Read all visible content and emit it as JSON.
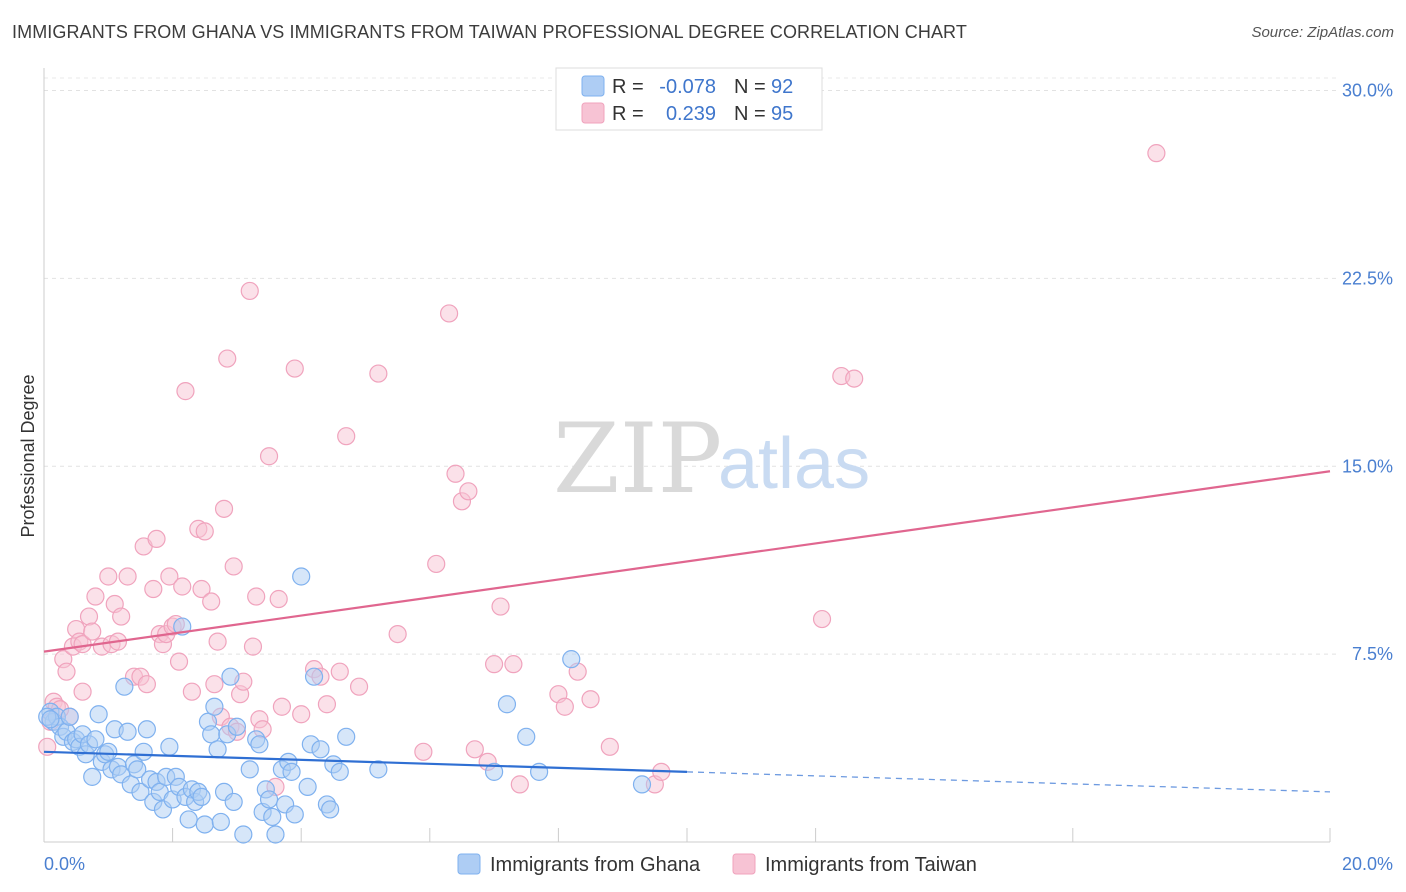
{
  "title": "IMMIGRANTS FROM GHANA VS IMMIGRANTS FROM TAIWAN PROFESSIONAL DEGREE CORRELATION CHART",
  "source": "Source: ZipAtlas.com",
  "watermark": {
    "zip": "ZIP",
    "atlas": "atlas"
  },
  "chart_data": {
    "type": "scatter",
    "title": "IMMIGRANTS FROM GHANA VS IMMIGRANTS FROM TAIWAN PROFESSIONAL DEGREE CORRELATION CHART",
    "xlabel": "",
    "ylabel": "Professional Degree",
    "xlim": [
      0,
      20
    ],
    "ylim": [
      0,
      30.5
    ],
    "x_tick_labels": {
      "0": "0.0%",
      "20": "20.0%"
    },
    "y_ticks": [
      {
        "value": 7.5,
        "label": "7.5%"
      },
      {
        "value": 15,
        "label": "15.0%"
      },
      {
        "value": 22.5,
        "label": "22.5%"
      },
      {
        "value": 30,
        "label": "30.0%"
      }
    ],
    "grid": true,
    "legend_top": {
      "entries": [
        {
          "r_label": "R =",
          "r_value": "-0.078",
          "n_label": "N =",
          "n_value": "92"
        },
        {
          "r_label": "R =",
          "r_value": "0.239",
          "n_label": "N =",
          "n_value": "95"
        }
      ]
    },
    "series": [
      {
        "name": "Immigrants from Ghana",
        "color": "#7fb1ef",
        "fill": "#aecdf4",
        "line_color": "#2f6fd3",
        "trend": {
          "x0": 0,
          "y0": 3.6,
          "x1": 10,
          "y1": 2.8,
          "dash_x1": 20,
          "dash_y1": 2.0
        },
        "points": [
          [
            0.1,
            5.2
          ],
          [
            0.15,
            4.8
          ],
          [
            0.2,
            5.0
          ],
          [
            0.25,
            4.6
          ],
          [
            0.3,
            4.2
          ],
          [
            0.35,
            4.4
          ],
          [
            0.4,
            5.0
          ],
          [
            0.45,
            4.0
          ],
          [
            0.5,
            4.1
          ],
          [
            0.55,
            3.8
          ],
          [
            0.6,
            4.3
          ],
          [
            0.65,
            3.5
          ],
          [
            0.7,
            3.9
          ],
          [
            0.75,
            2.6
          ],
          [
            0.8,
            4.1
          ],
          [
            0.85,
            5.1
          ],
          [
            0.9,
            3.2
          ],
          [
            0.95,
            3.5
          ],
          [
            1.0,
            3.6
          ],
          [
            1.05,
            2.9
          ],
          [
            1.1,
            4.5
          ],
          [
            1.15,
            3.0
          ],
          [
            1.2,
            2.7
          ],
          [
            1.25,
            6.2
          ],
          [
            1.3,
            4.4
          ],
          [
            1.35,
            2.3
          ],
          [
            1.4,
            3.1
          ],
          [
            1.45,
            2.9
          ],
          [
            1.5,
            2.0
          ],
          [
            1.55,
            3.6
          ],
          [
            1.6,
            4.5
          ],
          [
            1.65,
            2.5
          ],
          [
            1.7,
            1.6
          ],
          [
            1.75,
            2.4
          ],
          [
            1.8,
            2.0
          ],
          [
            1.85,
            1.3
          ],
          [
            1.9,
            2.6
          ],
          [
            1.95,
            3.8
          ],
          [
            2.0,
            1.7
          ],
          [
            2.05,
            2.6
          ],
          [
            2.1,
            2.2
          ],
          [
            2.15,
            8.6
          ],
          [
            2.2,
            1.8
          ],
          [
            2.25,
            0.9
          ],
          [
            2.3,
            2.1
          ],
          [
            2.35,
            1.6
          ],
          [
            2.4,
            2.0
          ],
          [
            2.45,
            1.8
          ],
          [
            2.5,
            0.7
          ],
          [
            2.55,
            4.8
          ],
          [
            2.6,
            4.3
          ],
          [
            2.65,
            5.4
          ],
          [
            2.7,
            3.7
          ],
          [
            2.75,
            0.8
          ],
          [
            2.8,
            2.0
          ],
          [
            2.85,
            4.3
          ],
          [
            2.9,
            6.6
          ],
          [
            2.95,
            1.6
          ],
          [
            3.0,
            4.6
          ],
          [
            3.1,
            0.3
          ],
          [
            3.2,
            2.9
          ],
          [
            3.3,
            4.1
          ],
          [
            3.35,
            3.9
          ],
          [
            3.4,
            1.2
          ],
          [
            3.45,
            2.1
          ],
          [
            3.5,
            1.7
          ],
          [
            3.55,
            1.0
          ],
          [
            3.6,
            0.3
          ],
          [
            3.7,
            2.9
          ],
          [
            3.75,
            1.5
          ],
          [
            3.8,
            3.2
          ],
          [
            3.85,
            2.8
          ],
          [
            3.9,
            1.1
          ],
          [
            4.0,
            10.6
          ],
          [
            4.1,
            2.2
          ],
          [
            4.15,
            3.9
          ],
          [
            4.2,
            6.6
          ],
          [
            4.3,
            3.7
          ],
          [
            4.4,
            1.5
          ],
          [
            4.45,
            1.3
          ],
          [
            4.5,
            3.1
          ],
          [
            4.6,
            2.8
          ],
          [
            4.7,
            4.2
          ],
          [
            5.2,
            2.9
          ],
          [
            7.0,
            2.8
          ],
          [
            7.2,
            5.5
          ],
          [
            7.5,
            4.2
          ],
          [
            7.7,
            2.8
          ],
          [
            8.2,
            7.3
          ],
          [
            9.3,
            2.3
          ],
          [
            0.05,
            5.0
          ],
          [
            0.1,
            4.9
          ]
        ]
      },
      {
        "name": "Immigrants from Taiwan",
        "color": "#f0a3bd",
        "fill": "#f7c3d4",
        "line_color": "#e0668f",
        "trend": {
          "x0": 0,
          "y0": 7.6,
          "x1": 20,
          "y1": 14.8
        },
        "points": [
          [
            0.05,
            3.8
          ],
          [
            0.1,
            4.8
          ],
          [
            0.15,
            5.6
          ],
          [
            0.2,
            5.4
          ],
          [
            0.3,
            7.3
          ],
          [
            0.35,
            6.8
          ],
          [
            0.4,
            5.0
          ],
          [
            0.45,
            7.8
          ],
          [
            0.5,
            8.5
          ],
          [
            0.55,
            8.0
          ],
          [
            0.6,
            7.9
          ],
          [
            0.7,
            9.0
          ],
          [
            0.75,
            8.4
          ],
          [
            0.8,
            9.8
          ],
          [
            0.9,
            7.8
          ],
          [
            1.0,
            10.6
          ],
          [
            1.05,
            7.9
          ],
          [
            1.1,
            9.5
          ],
          [
            1.15,
            8.0
          ],
          [
            1.2,
            9.0
          ],
          [
            1.3,
            10.6
          ],
          [
            1.4,
            6.6
          ],
          [
            1.5,
            6.6
          ],
          [
            1.55,
            11.8
          ],
          [
            1.6,
            6.3
          ],
          [
            1.7,
            10.1
          ],
          [
            1.75,
            12.1
          ],
          [
            1.8,
            8.3
          ],
          [
            1.85,
            7.9
          ],
          [
            1.9,
            8.3
          ],
          [
            1.95,
            10.6
          ],
          [
            2.0,
            8.6
          ],
          [
            2.05,
            8.7
          ],
          [
            2.1,
            7.2
          ],
          [
            2.15,
            10.2
          ],
          [
            2.2,
            18.0
          ],
          [
            2.3,
            6.0
          ],
          [
            2.4,
            12.5
          ],
          [
            2.45,
            10.1
          ],
          [
            2.5,
            12.4
          ],
          [
            2.6,
            9.6
          ],
          [
            2.65,
            6.3
          ],
          [
            2.7,
            8.0
          ],
          [
            2.75,
            5.0
          ],
          [
            2.8,
            13.3
          ],
          [
            2.85,
            19.3
          ],
          [
            2.9,
            4.6
          ],
          [
            2.95,
            11.0
          ],
          [
            3.0,
            4.4
          ],
          [
            3.05,
            5.9
          ],
          [
            3.1,
            6.4
          ],
          [
            3.2,
            22.0
          ],
          [
            3.25,
            7.8
          ],
          [
            3.3,
            9.8
          ],
          [
            3.35,
            4.9
          ],
          [
            3.4,
            4.5
          ],
          [
            3.5,
            15.4
          ],
          [
            3.6,
            2.2
          ],
          [
            3.65,
            9.7
          ],
          [
            3.7,
            5.4
          ],
          [
            3.9,
            18.9
          ],
          [
            4.0,
            5.1
          ],
          [
            4.2,
            6.9
          ],
          [
            4.3,
            6.6
          ],
          [
            4.4,
            5.5
          ],
          [
            4.6,
            6.8
          ],
          [
            4.7,
            16.2
          ],
          [
            4.9,
            6.2
          ],
          [
            5.2,
            18.7
          ],
          [
            5.5,
            8.3
          ],
          [
            5.9,
            3.6
          ],
          [
            6.1,
            11.1
          ],
          [
            6.3,
            21.1
          ],
          [
            6.4,
            14.7
          ],
          [
            6.5,
            13.6
          ],
          [
            6.6,
            14.0
          ],
          [
            6.7,
            3.7
          ],
          [
            6.9,
            3.2
          ],
          [
            7.0,
            7.1
          ],
          [
            7.1,
            9.4
          ],
          [
            7.3,
            7.1
          ],
          [
            7.4,
            2.3
          ],
          [
            8.0,
            5.9
          ],
          [
            8.1,
            5.4
          ],
          [
            8.3,
            6.8
          ],
          [
            8.5,
            5.7
          ],
          [
            8.8,
            3.8
          ],
          [
            9.5,
            2.3
          ],
          [
            9.6,
            2.8
          ],
          [
            12.1,
            8.9
          ],
          [
            12.4,
            18.6
          ],
          [
            12.6,
            18.5
          ],
          [
            17.3,
            27.5
          ],
          [
            0.25,
            5.3
          ],
          [
            0.6,
            6.0
          ]
        ]
      }
    ]
  },
  "bottom_legend": [
    {
      "label": "Immigrants from Ghana"
    },
    {
      "label": "Immigrants from Taiwan"
    }
  ]
}
